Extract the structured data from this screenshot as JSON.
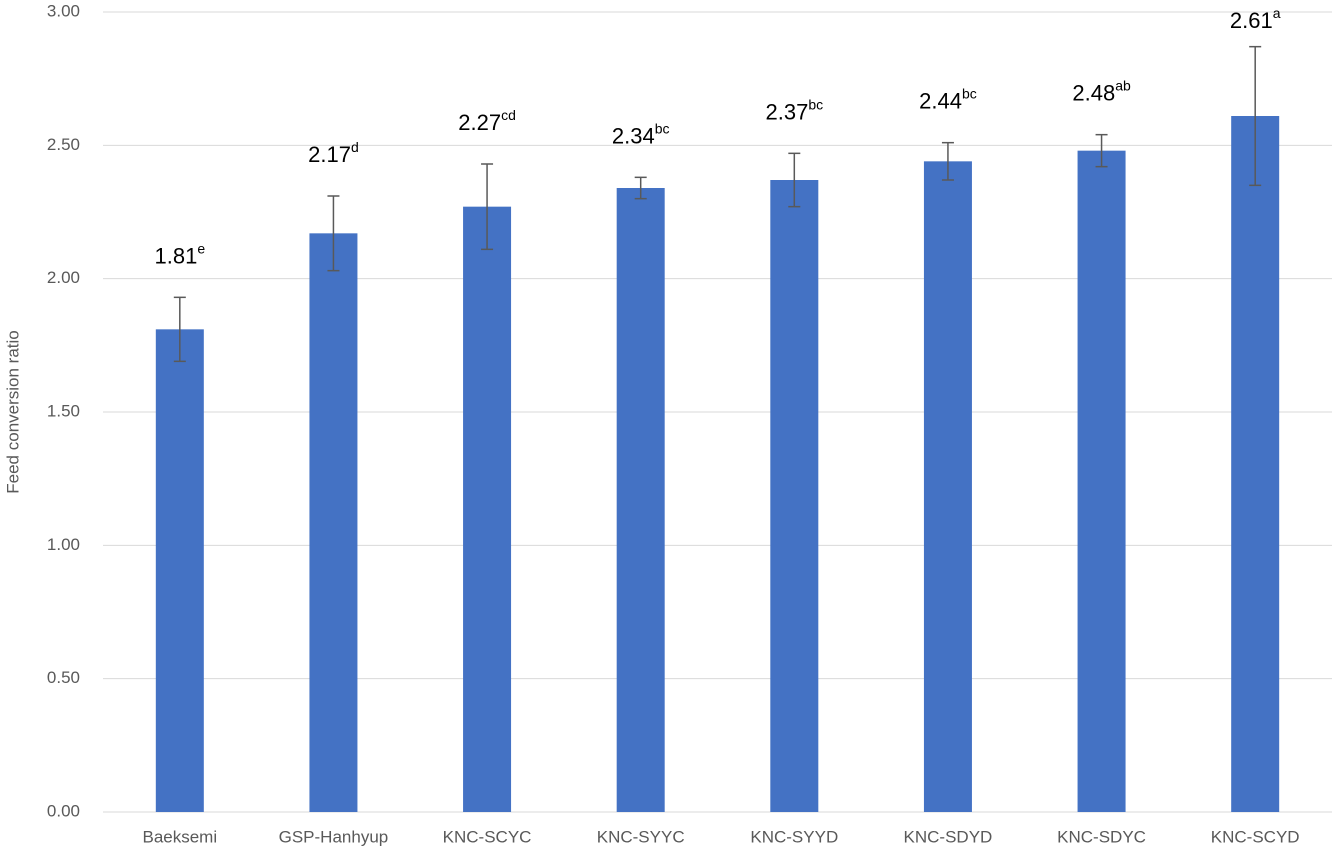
{
  "chart_data": {
    "type": "bar",
    "y_label": "Feed conversion ratio",
    "categories": [
      "Baeksemi",
      "GSP-Hanhyup",
      "KNC-SCYC",
      "KNC-SYYC",
      "KNC-SYYD",
      "KNC-SDYD",
      "KNC-SDYC",
      "KNC-SCYD"
    ],
    "values": [
      1.81,
      2.17,
      2.27,
      2.34,
      2.37,
      2.44,
      2.48,
      2.61
    ],
    "errors": [
      0.12,
      0.14,
      0.16,
      0.04,
      0.1,
      0.07,
      0.06,
      0.26
    ],
    "significance_letters": [
      "e",
      "d",
      "cd",
      "bc",
      "bc",
      "bc",
      "ab",
      "a"
    ],
    "color": "#4472c4",
    "error_color": "#595959",
    "ylim": [
      0,
      3
    ],
    "yticks": [
      {
        "value": 0,
        "label": "0.00"
      },
      {
        "value": 0.5,
        "label": "0.50"
      },
      {
        "value": 1,
        "label": "1.00"
      },
      {
        "value": 1.5,
        "label": "1.50"
      },
      {
        "value": 2,
        "label": "2.00"
      },
      {
        "value": 2.5,
        "label": "2.50"
      },
      {
        "value": 3,
        "label": "3.00"
      }
    ],
    "grid": true
  }
}
